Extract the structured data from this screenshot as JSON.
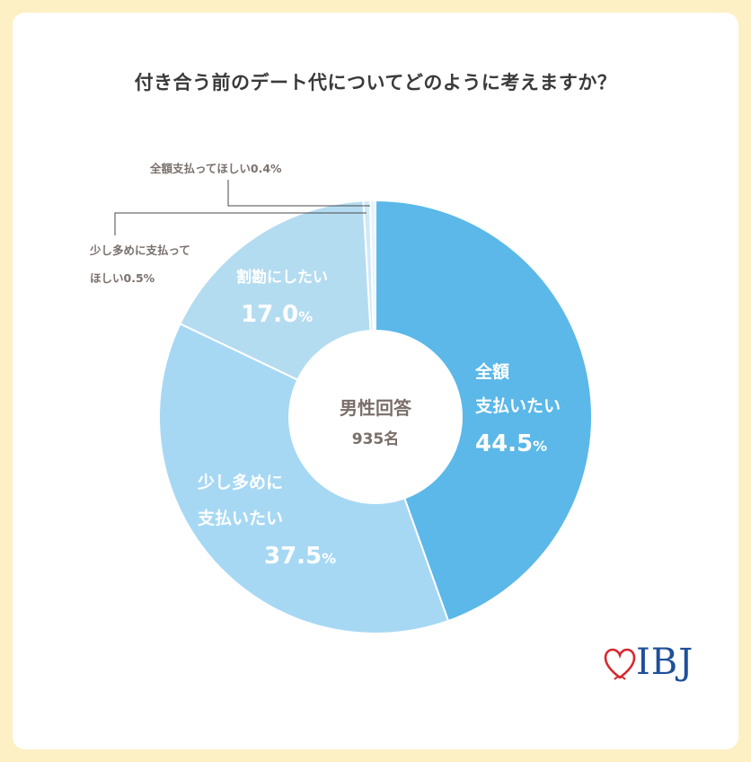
{
  "title": "付き合う前のデート代についてどのように考えますか？",
  "center": {
    "line1": "男性回答",
    "line2": "935名"
  },
  "logo_text": "IBJ",
  "chart_data": {
    "type": "pie",
    "donut": true,
    "title": "付き合う前のデート代についてどのように考えますか？",
    "slices": [
      {
        "label": "全額支払いたい",
        "lines": [
          "全額",
          "支払いたい"
        ],
        "value": 44.5,
        "value_text": "44.5",
        "color": "#5bb8e8"
      },
      {
        "label": "少し多めに支払いたい",
        "lines": [
          "少し多めに",
          "支払いたい"
        ],
        "value": 37.5,
        "value_text": "37.5",
        "color": "#a6d8f4"
      },
      {
        "label": "割勘にしたい",
        "lines": [
          "割勘にしたい"
        ],
        "value": 17.0,
        "value_text": "17.0",
        "color": "#b4dcf1"
      },
      {
        "label": "少し多めに支払ってほしい",
        "lines": [
          "少し多めに支払って",
          "ほしい0.5%"
        ],
        "value": 0.5,
        "value_text": "0.5",
        "color": "#cfe9f8"
      },
      {
        "label": "全額支払ってほしい",
        "lines": [
          "全額支払ってほしい0.4%"
        ],
        "value": 0.4,
        "value_text": "0.4",
        "color": "#e6f4fc"
      }
    ],
    "unit": "%"
  },
  "colors": {
    "background": "#fdf0c4",
    "card": "#ffffff",
    "logo_blue": "#1f4f9a",
    "logo_red": "#d6282f"
  }
}
